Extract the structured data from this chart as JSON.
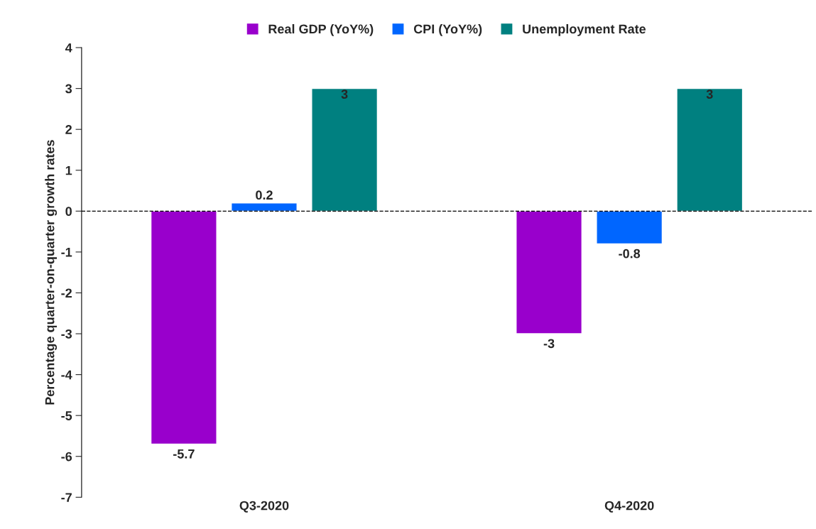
{
  "chart_data": {
    "type": "bar",
    "ylabel": "Percentage quarter-on-quarter growth rates",
    "categories": [
      "Q3-2020",
      "Q4-2020"
    ],
    "series": [
      {
        "name": "Real GDP (YoY%)",
        "color": "#9900cc",
        "values": [
          -5.7,
          -3
        ]
      },
      {
        "name": "CPI (YoY%)",
        "color": "#0066ff",
        "values": [
          0.2,
          -0.8
        ]
      },
      {
        "name": "Unemployment Rate",
        "color": "#008080",
        "values": [
          3,
          3
        ]
      }
    ],
    "ylim": [
      -7,
      4
    ],
    "yticks": [
      -7,
      -6,
      -5,
      -4,
      -3,
      -2,
      -1,
      0,
      1,
      2,
      3,
      4
    ],
    "ref_lines": [
      {
        "axis": "y",
        "value": 0,
        "color": "#000000",
        "line_style": "dashed"
      }
    ],
    "data_labels": true,
    "legend": "top",
    "grid": false
  }
}
